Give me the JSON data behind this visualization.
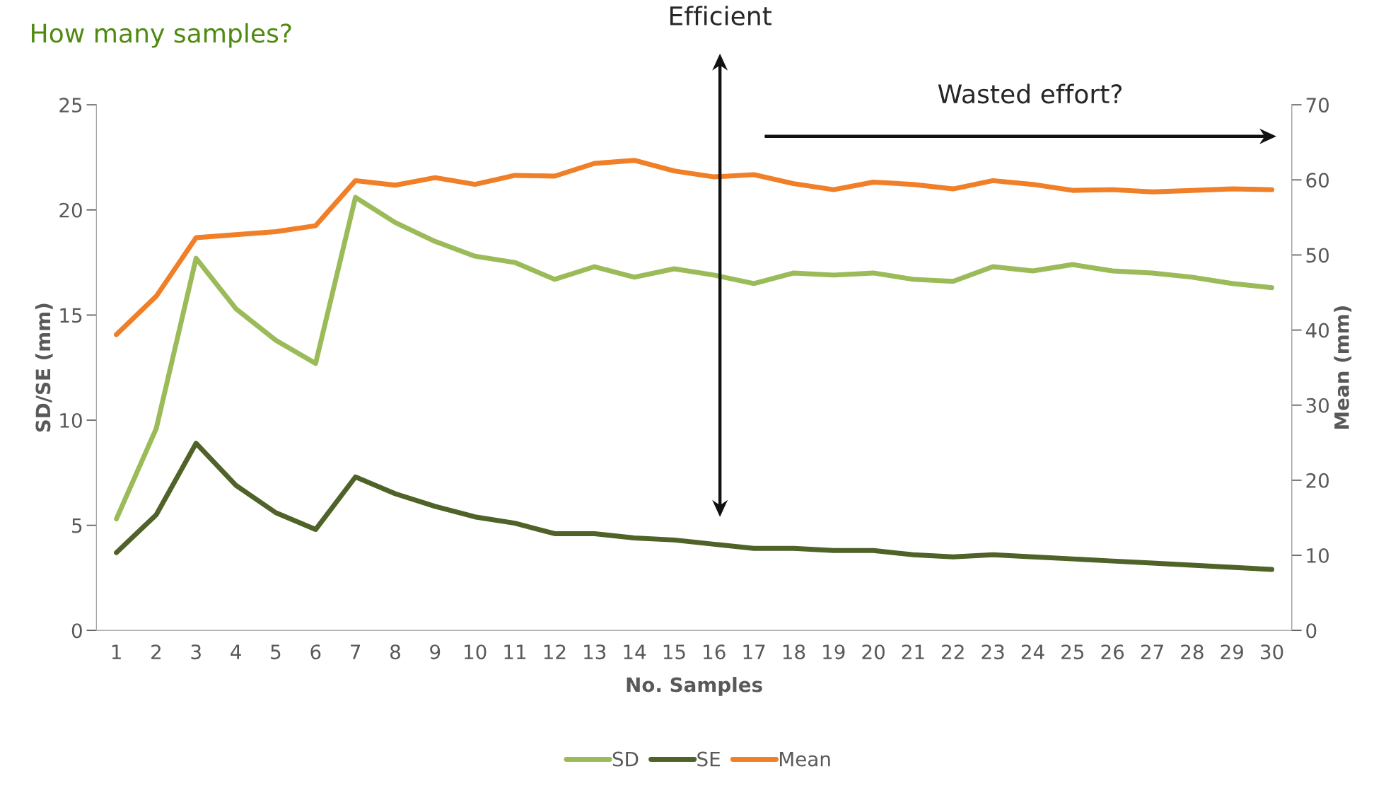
{
  "chart_data": {
    "type": "line",
    "title": "How many samples?",
    "xlabel": "No. Samples",
    "ylabel": "SD/SE (mm)",
    "y2label": "Mean (mm)",
    "categories": [
      "1",
      "2",
      "3",
      "4",
      "5",
      "6",
      "7",
      "8",
      "9",
      "10",
      "11",
      "12",
      "13",
      "14",
      "15",
      "16",
      "17",
      "18",
      "19",
      "20",
      "21",
      "22",
      "23",
      "24",
      "25",
      "26",
      "27",
      "28",
      "29",
      "30"
    ],
    "series": [
      {
        "name": "SD",
        "color": "#9bbb59",
        "values": [
          5.3,
          9.6,
          17.7,
          15.3,
          13.8,
          12.7,
          20.6,
          19.4,
          18.5,
          17.8,
          17.5,
          16.7,
          17.3,
          16.8,
          17.2,
          16.9,
          16.5,
          17.0,
          16.9,
          17.0,
          16.7,
          16.6,
          17.3,
          17.1,
          17.4,
          17.1,
          17.0,
          16.8,
          16.5,
          16.3
        ]
      },
      {
        "name": "SE",
        "color": "#4f6228",
        "values": [
          3.7,
          5.5,
          8.9,
          6.9,
          5.6,
          4.8,
          7.3,
          6.5,
          5.9,
          5.4,
          5.1,
          4.6,
          4.6,
          4.4,
          4.3,
          4.1,
          3.9,
          3.9,
          3.8,
          3.8,
          3.6,
          3.5,
          3.6,
          3.5,
          3.4,
          3.3,
          3.2,
          3.1,
          3.0,
          2.9
        ]
      },
      {
        "name": "Mean",
        "color": "#f07f27",
        "axis": "y2",
        "values": [
          39.4,
          44.5,
          52.3,
          52.7,
          53.1,
          53.9,
          59.9,
          59.3,
          60.3,
          59.4,
          60.6,
          60.5,
          62.2,
          62.6,
          61.2,
          60.4,
          60.7,
          59.5,
          58.7,
          59.7,
          59.4,
          58.8,
          59.9,
          59.4,
          58.6,
          58.7,
          58.4,
          58.6,
          58.8,
          58.7
        ]
      }
    ],
    "ylim": [
      0,
      25
    ],
    "yticks": [
      0,
      5,
      10,
      15,
      20,
      25
    ],
    "y2lim": [
      0,
      70
    ],
    "y2ticks": [
      0,
      10,
      20,
      30,
      40,
      50,
      60,
      70
    ],
    "annotations": [
      "Efficient",
      "Wasted effort?"
    ],
    "grid": false,
    "legend": "bottom",
    "marker": "none",
    "line_style": "solid"
  }
}
